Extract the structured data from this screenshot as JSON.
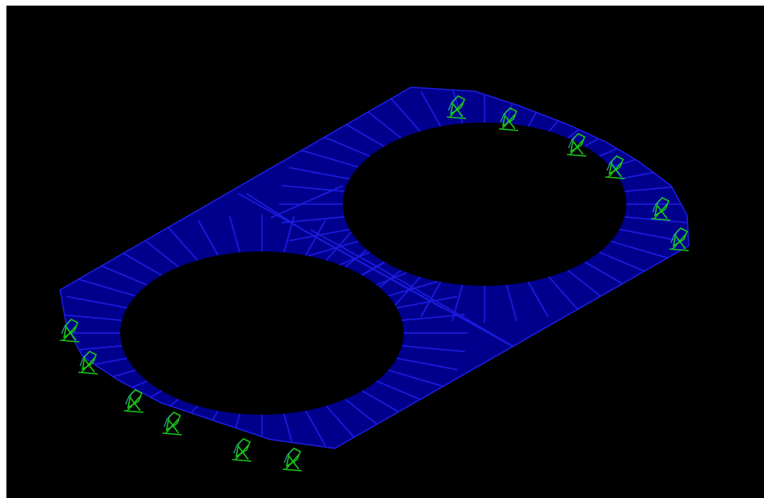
{
  "viewport": {
    "background": "#000000",
    "frame": "#ffffff"
  },
  "model": {
    "description_hidden": "",
    "plate_fill": "#00008c",
    "mesh_line": "#1e1ee6",
    "hole_fill": "#000000",
    "holes": 2,
    "support_color": "#19c819",
    "support_icon": "fixed-support-icon",
    "supports": 12
  }
}
